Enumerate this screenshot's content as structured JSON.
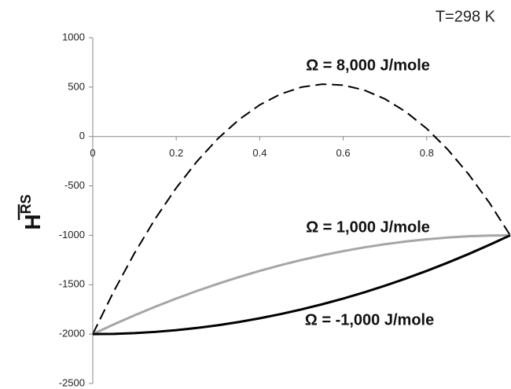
{
  "chart_data": {
    "type": "line",
    "annotation": "T=298 K",
    "ylabel": "H",
    "ylabel_superscript": "RS",
    "x": [
      0,
      0.05,
      0.1,
      0.15,
      0.2,
      0.25,
      0.3,
      0.35,
      0.4,
      0.45,
      0.5,
      0.55,
      0.6,
      0.65,
      0.7,
      0.75,
      0.8,
      0.85,
      0.9,
      0.95,
      1
    ],
    "series": [
      {
        "name": "Ω = 8,000 J/mole",
        "color": "#000000",
        "dashed": true,
        "values": [
          -2000,
          -1570,
          -1180,
          -830,
          -520,
          -250,
          -20,
          170,
          320,
          430,
          500,
          530,
          520,
          470,
          380,
          250,
          80,
          -130,
          -380,
          -670,
          -1000
        ]
      },
      {
        "name": "Ω = 1,000 J/mole",
        "color": "#a6a6a6",
        "dashed": false,
        "values": [
          -2000,
          -1902.5,
          -1810,
          -1722.5,
          -1640,
          -1562.5,
          -1490,
          -1422.5,
          -1360,
          -1302.5,
          -1250,
          -1202.5,
          -1160,
          -1122.5,
          -1090,
          -1062.5,
          -1040,
          -1022.5,
          -1010,
          -1002.5,
          -1000
        ]
      },
      {
        "name": "Ω = -1,000 J/mole",
        "color": "#000000",
        "dashed": false,
        "values": [
          -2000,
          -1997.5,
          -1990,
          -1977.5,
          -1960,
          -1937.5,
          -1910,
          -1877.5,
          -1840,
          -1797.5,
          -1750,
          -1697.5,
          -1640,
          -1577.5,
          -1510,
          -1437.5,
          -1360,
          -1277.5,
          -1190,
          -1097.5,
          -1000
        ]
      }
    ],
    "xlim": [
      0,
      1
    ],
    "xticks": [
      0,
      0.2,
      0.4,
      0.6,
      0.8
    ],
    "ylim": [
      -2500,
      1000
    ],
    "yticks": [
      -2500,
      -2000,
      -1500,
      -1000,
      -500,
      0,
      500,
      1000
    ],
    "grid": false
  }
}
